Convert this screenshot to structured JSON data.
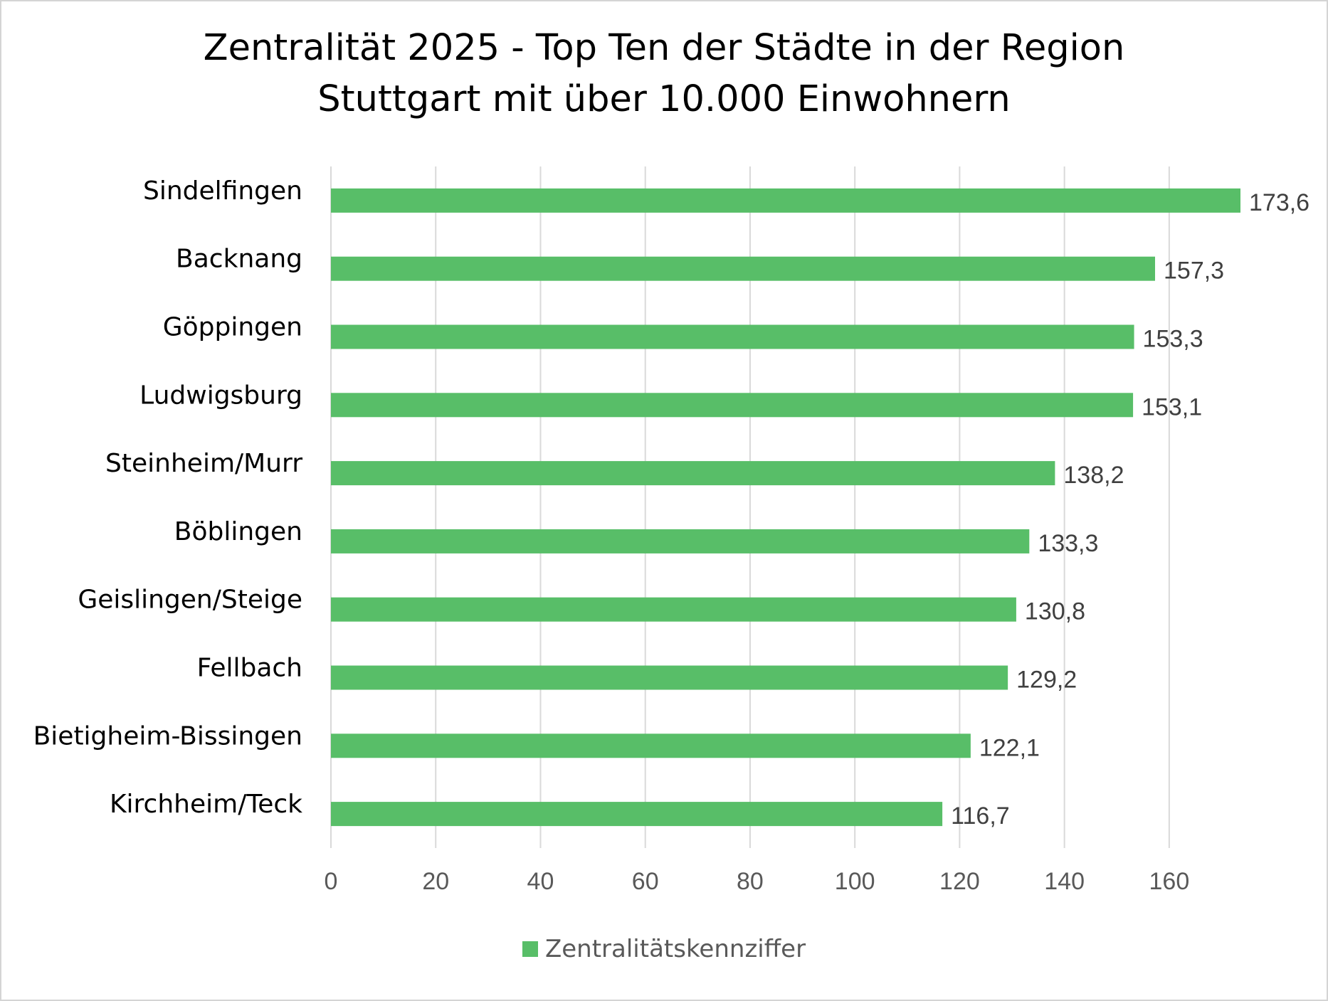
{
  "chart_data": {
    "type": "bar",
    "orientation": "horizontal",
    "title_lines": [
      "Zentralität 2025 - Top Ten der Städte in der Region",
      "Stuttgart mit über 10.000 Einwohnern"
    ],
    "categories": [
      "Sindelfingen",
      "Backnang",
      "Göppingen",
      "Ludwigsburg",
      "Steinheim/Murr",
      "Böblingen",
      "Geislingen/Steige",
      "Fellbach",
      "Bietigheim-Bissingen",
      "Kirchheim/Teck"
    ],
    "series": [
      {
        "name": "Zentralitätskennziffer",
        "values": [
          173.6,
          157.3,
          153.3,
          153.1,
          138.2,
          133.3,
          130.8,
          129.2,
          122.1,
          116.7
        ],
        "data_labels": [
          "173,6",
          "157,3",
          "153,3",
          "153,1",
          "138,2",
          "133,3",
          "130,8",
          "129,2",
          "122,1",
          "116,7"
        ],
        "color": "#58be68"
      }
    ],
    "xlim": [
      0,
      173.6
    ],
    "x_ticks": [
      0,
      20,
      40,
      60,
      80,
      100,
      120,
      140,
      160
    ],
    "x_tick_labels": [
      "0",
      "20",
      "40",
      "60",
      "80",
      "100",
      "120",
      "140",
      "160"
    ],
    "grid": "vertical",
    "gridline_color": "#d9d9d9",
    "legend_position": "bottom"
  }
}
